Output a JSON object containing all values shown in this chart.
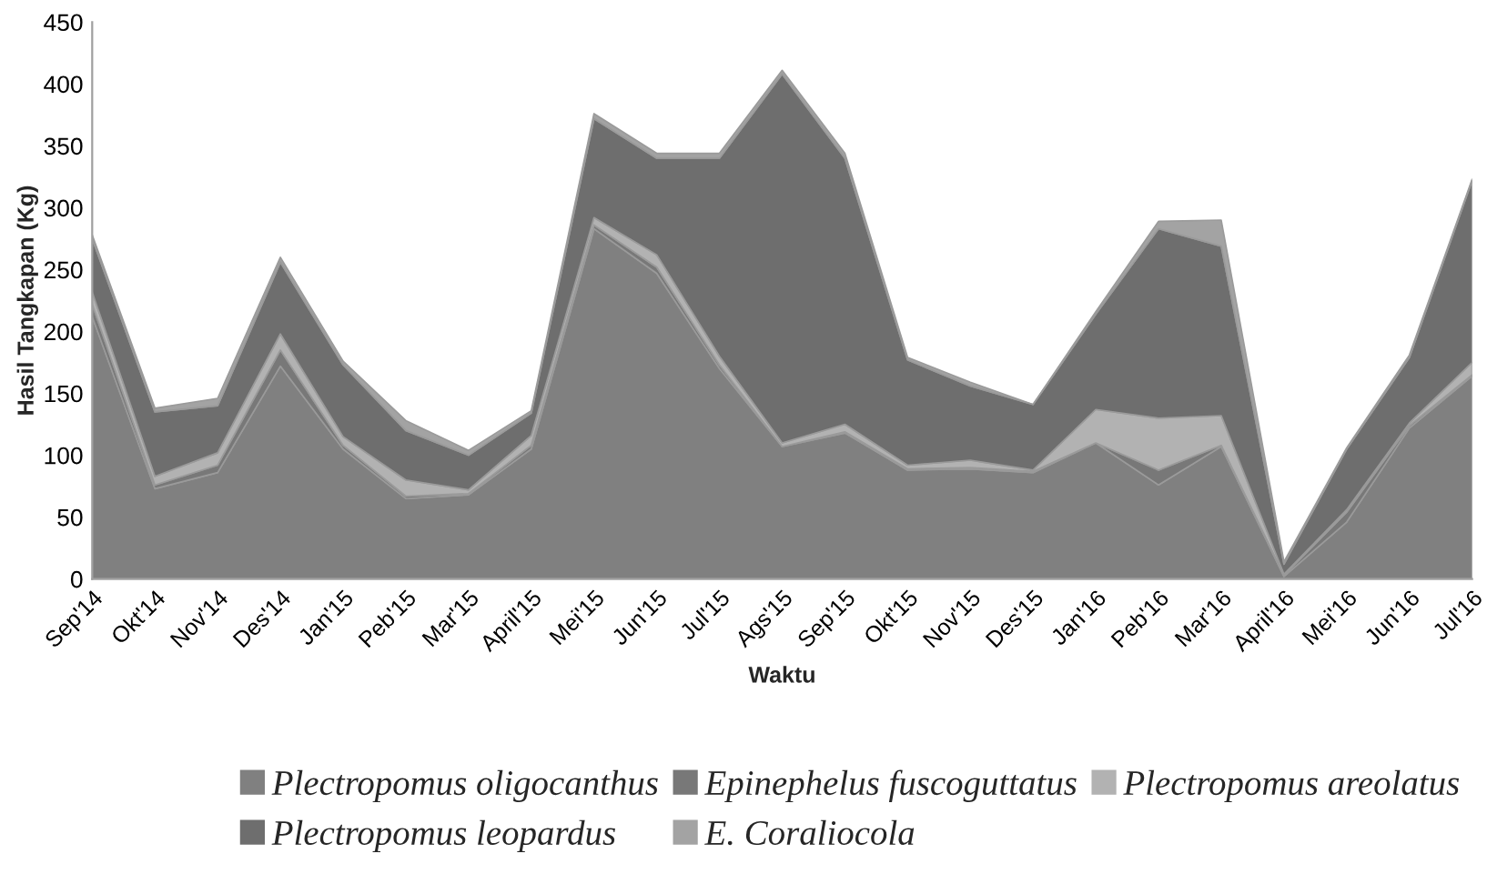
{
  "chart_data": {
    "type": "area",
    "stacked": true,
    "xlabel": "Waktu",
    "ylabel": "Hasil Tangkapan (Kg)",
    "categories": [
      "Sep'14",
      "Okt'14",
      "Nov'14",
      "Des'14",
      "Jan'15",
      "Peb'15",
      "Mar'15",
      "April'15",
      "Mei'15",
      "Jun'15",
      "Jul'15",
      "Ags'15",
      "Sep'15",
      "Okt'15",
      "Nov'15",
      "Des'15",
      "Jan'16",
      "Peb'16",
      "Mar'16",
      "April'16",
      "Mei'16",
      "Jun'16",
      "Jul'16"
    ],
    "series": [
      {
        "name": "Plectropomus oligocanthus",
        "color": "#808080",
        "values": [
          212,
          73,
          86,
          172,
          105,
          65,
          68,
          105,
          283,
          247,
          170,
          107,
          118,
          88,
          89,
          86,
          110,
          76,
          107,
          2,
          46,
          122,
          164
        ]
      },
      {
        "name": "Epinephelus fuscoguttatus",
        "color": "#787878",
        "values": [
          10,
          3,
          6,
          13,
          3,
          2,
          1,
          3,
          3,
          5,
          3,
          0,
          1,
          1,
          1,
          1,
          0,
          12,
          1,
          1,
          8,
          2,
          1
        ]
      },
      {
        "name": "Plectropomus areolatus",
        "color": "#b2b2b2",
        "values": [
          10,
          7,
          10,
          13,
          7,
          13,
          3,
          8,
          6,
          10,
          7,
          3,
          6,
          3,
          6,
          1,
          27,
          42,
          24,
          1,
          2,
          2,
          10
        ]
      },
      {
        "name": "Plectropomus leopardus",
        "color": "#6e6e6e",
        "values": [
          43,
          52,
          38,
          58,
          58,
          40,
          28,
          18,
          80,
          78,
          160,
          298,
          215,
          85,
          60,
          53,
          77,
          153,
          137,
          8,
          49,
          53,
          147
        ]
      },
      {
        "name": "E. Coraliocola",
        "color": "#a3a3a3",
        "values": [
          3,
          3,
          6,
          4,
          3,
          8,
          4,
          2,
          4,
          4,
          4,
          3,
          4,
          2,
          3,
          0,
          2,
          6,
          21,
          2,
          1,
          2,
          1
        ]
      }
    ],
    "ylim": [
      0,
      450
    ],
    "yticks": [
      0,
      50,
      100,
      150,
      200,
      250,
      300,
      350,
      400,
      450
    ],
    "grid": false,
    "legend": "bottom"
  }
}
